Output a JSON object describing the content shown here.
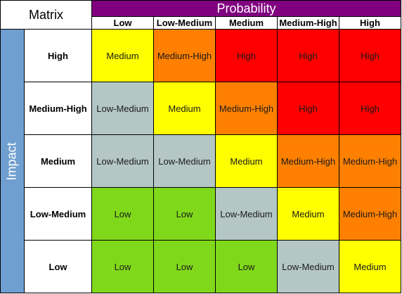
{
  "matrix": {
    "title": "Matrix",
    "probability_label": "Probability",
    "impact_label": "Impact",
    "probability_levels": [
      "Low",
      "Low-Medium",
      "Medium",
      "Medium-High",
      "High"
    ],
    "impact_levels": [
      "High",
      "Medium-High",
      "Medium",
      "Low-Medium",
      "Low"
    ],
    "rows": [
      [
        "Medium",
        "Medium-High",
        "High",
        "High",
        "High"
      ],
      [
        "Low-Medium",
        "Medium",
        "Medium-High",
        "High",
        "High"
      ],
      [
        "Low-Medium",
        "Low-Medium",
        "Medium",
        "Medium-High",
        "Medium-High"
      ],
      [
        "Low",
        "Low",
        "Low-Medium",
        "Medium",
        "Medium-High"
      ],
      [
        "Low",
        "Low",
        "Low",
        "Low-Medium",
        "Medium"
      ]
    ]
  },
  "colors": {
    "Low": "#80d81a",
    "Low-Medium": "#b4c7c5",
    "Medium": "#ffff00",
    "Medium-High": "#ff8000",
    "High": "#ff0000",
    "probability_header": "#800080",
    "impact_header": "#6f9fd0"
  }
}
